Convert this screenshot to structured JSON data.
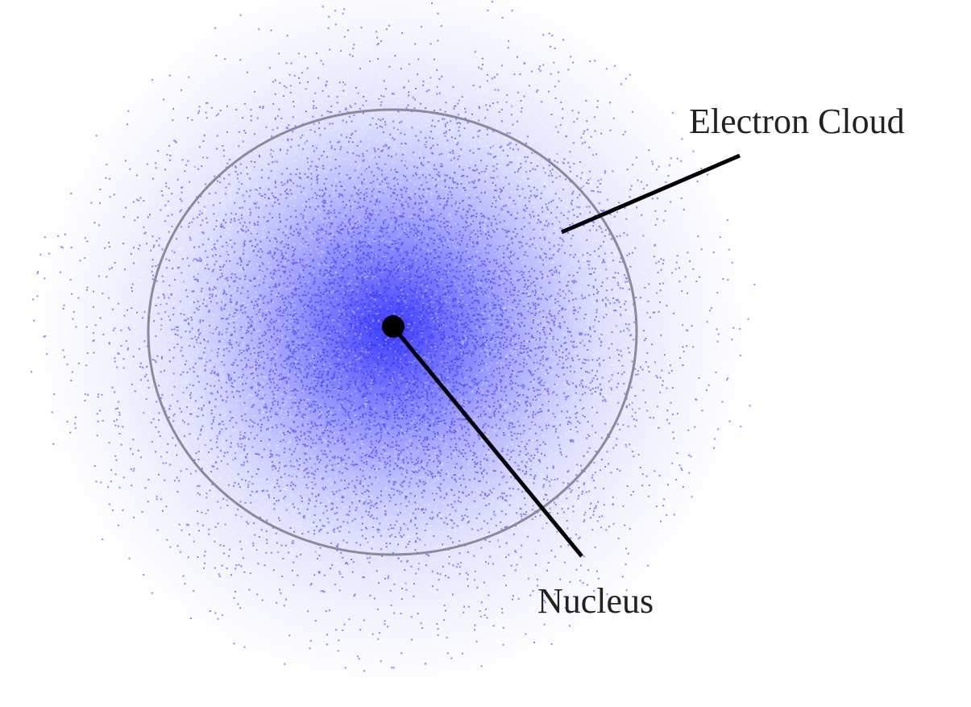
{
  "labels": {
    "electron_cloud": "Electron Cloud",
    "nucleus": "Nucleus"
  }
}
